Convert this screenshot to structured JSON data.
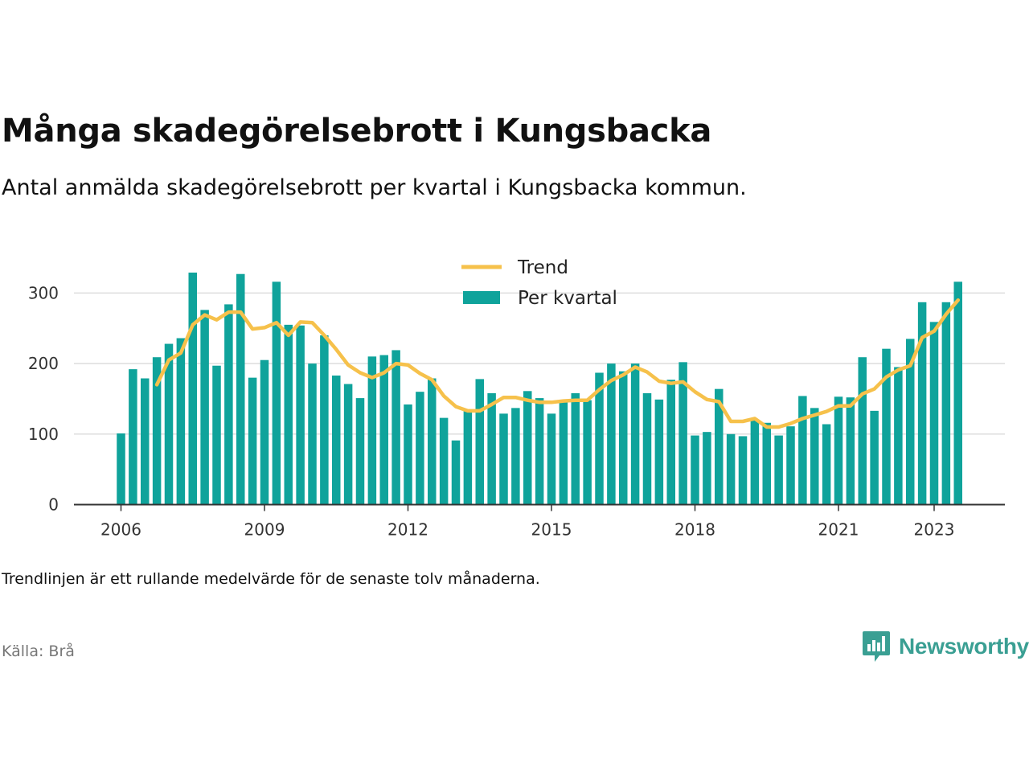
{
  "title": "Många skadegörelsebrott i Kungsbacka",
  "subtitle": "Antal anmälda skadegörelsebrott per kvartal i Kungsbacka kommun.",
  "note": "Trendlinjen är ett rullande medelvärde för de senaste tolv månaderna.",
  "source": "Källa: Brå",
  "brand": {
    "name": "Newsworthy",
    "icon": "newsworthy-logo-icon"
  },
  "colors": {
    "bars": "#0fa39b",
    "trend": "#f6c14b",
    "grid": "#dddddd",
    "axis": "#333333",
    "brand": "#3a9f93"
  },
  "chart_data": {
    "type": "bar",
    "title": "Många skadegörelsebrott i Kungsbacka",
    "xlabel": "",
    "ylabel": "",
    "ylim": [
      0,
      350
    ],
    "yticks": [
      0,
      100,
      200,
      300
    ],
    "xticks": [
      "2006",
      "2009",
      "2012",
      "2015",
      "2018",
      "2021",
      "2023"
    ],
    "xtick_positions": [
      2006,
      2009,
      2012,
      2015,
      2018,
      2021,
      2023
    ],
    "x_start": 2006.0,
    "x_step": 0.25,
    "grid": true,
    "legend_position": "top-center",
    "series": [
      {
        "name": "Per kvartal",
        "type": "bar",
        "values": [
          101,
          192,
          179,
          209,
          228,
          236,
          329,
          276,
          197,
          284,
          327,
          180,
          205,
          316,
          255,
          254,
          200,
          240,
          183,
          171,
          151,
          210,
          212,
          219,
          142,
          160,
          179,
          123,
          91,
          134,
          178,
          158,
          129,
          137,
          161,
          151,
          129,
          148,
          158,
          148,
          187,
          200,
          189,
          200,
          158,
          149,
          177,
          202,
          98,
          103,
          164,
          100,
          97,
          120,
          116,
          98,
          111,
          154,
          137,
          114,
          153,
          152,
          209,
          133,
          221,
          195,
          235,
          287,
          259,
          287,
          316
        ]
      },
      {
        "name": "Trend",
        "type": "line",
        "start_index": 3,
        "values": [
          170,
          205,
          215,
          255,
          269,
          262,
          273,
          273,
          249,
          251,
          258,
          240,
          259,
          258,
          240,
          220,
          198,
          187,
          180,
          187,
          200,
          198,
          186,
          177,
          154,
          139,
          133,
          133,
          142,
          152,
          152,
          148,
          145,
          145,
          147,
          148,
          148,
          163,
          176,
          184,
          195,
          188,
          175,
          172,
          174,
          160,
          149,
          146,
          118,
          118,
          122,
          110,
          110,
          115,
          122,
          127,
          132,
          140,
          140,
          157,
          164,
          181,
          191,
          197,
          237,
          246,
          270,
          290
        ]
      }
    ]
  }
}
